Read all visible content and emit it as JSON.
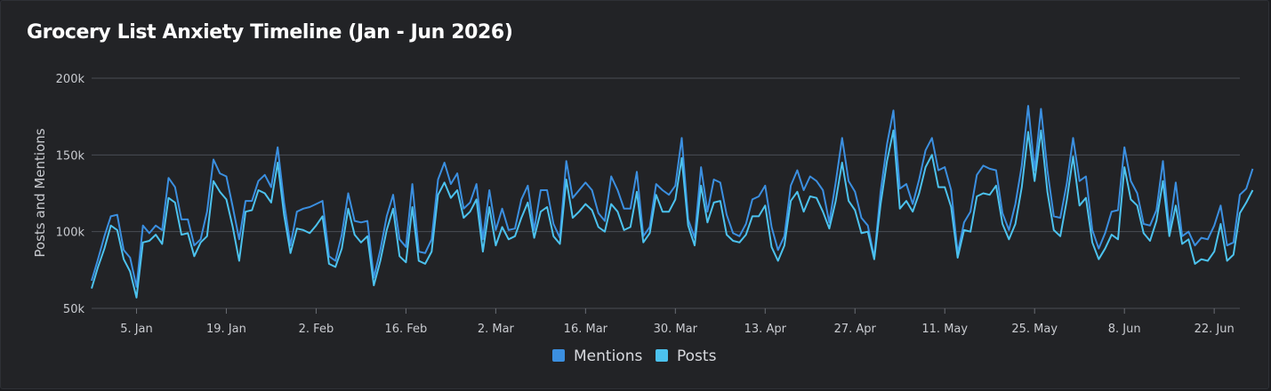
{
  "chart_data": {
    "type": "line",
    "title": "Grocery List Anxiety Timeline (Jan - Jun 2026)",
    "ylabel": "Posts and Mentions",
    "xlabel": "",
    "ylim": [
      50000,
      200000
    ],
    "y_ticks": [
      50000,
      100000,
      150000,
      200000
    ],
    "y_tick_labels": [
      "50k",
      "100k",
      "150k",
      "200k"
    ],
    "x_range": [
      "2025-12-29",
      "2026-06-26"
    ],
    "x_ticks": [
      "2026-01-05",
      "2026-01-19",
      "2026-02-02",
      "2026-02-16",
      "2026-03-02",
      "2026-03-16",
      "2026-03-30",
      "2026-04-13",
      "2026-04-27",
      "2026-05-11",
      "2026-05-25",
      "2026-06-08",
      "2026-06-22"
    ],
    "x_tick_labels": [
      "5. Jan",
      "19. Jan",
      "2. Feb",
      "16. Feb",
      "2. Mar",
      "16. Mar",
      "30. Mar",
      "13. Apr",
      "27. Apr",
      "11. May",
      "25. May",
      "8. Jun",
      "22. Jun"
    ],
    "legend_position": "bottom-center",
    "grid": "horizontal",
    "x_start": "2025-12-29",
    "series": [
      {
        "name": "Mentions",
        "color": "#3b8fe0",
        "values": [
          68000,
          82000,
          97000,
          110000,
          111000,
          88000,
          83000,
          64000,
          104000,
          99000,
          104000,
          101000,
          135000,
          129000,
          108000,
          108000,
          91000,
          95000,
          113000,
          147000,
          138000,
          136000,
          116000,
          95000,
          120000,
          120000,
          133000,
          137000,
          129000,
          155000,
          119000,
          91000,
          113000,
          115000,
          116000,
          118000,
          120000,
          84000,
          81000,
          98000,
          125000,
          107000,
          106000,
          107000,
          70000,
          88000,
          110000,
          124000,
          95000,
          90000,
          131000,
          87000,
          86000,
          95000,
          134000,
          145000,
          131000,
          138000,
          115000,
          119000,
          131000,
          95000,
          127000,
          101000,
          115000,
          101000,
          102000,
          121000,
          130000,
          101000,
          127000,
          127000,
          105000,
          96000,
          146000,
          122000,
          127000,
          132000,
          127000,
          112000,
          107000,
          136000,
          127000,
          115000,
          115000,
          139000,
          97000,
          103000,
          131000,
          127000,
          124000,
          130000,
          161000,
          108000,
          96000,
          142000,
          113000,
          134000,
          132000,
          111000,
          99000,
          97000,
          105000,
          121000,
          123000,
          130000,
          103000,
          88000,
          97000,
          130000,
          140000,
          127000,
          136000,
          133000,
          127000,
          106000,
          132000,
          161000,
          133000,
          126000,
          109000,
          104000,
          83000,
          126000,
          157000,
          179000,
          128000,
          131000,
          118000,
          134000,
          153000,
          161000,
          140000,
          142000,
          127000,
          86000,
          106000,
          113000,
          137000,
          143000,
          141000,
          140000,
          112000,
          101000,
          118000,
          143000,
          182000,
          140000,
          180000,
          140000,
          110000,
          109000,
          131000,
          161000,
          133000,
          136000,
          101000,
          89000,
          99000,
          113000,
          114000,
          155000,
          133000,
          125000,
          105000,
          104000,
          114000,
          146000,
          101000,
          132000,
          97000,
          100000,
          91000,
          96000,
          95000,
          104000,
          117000,
          91000,
          93000,
          124000,
          128000,
          141000
        ]
      },
      {
        "name": "Posts",
        "color": "#4cc2ee",
        "values": [
          63000,
          77000,
          89000,
          104000,
          101000,
          82000,
          74000,
          57000,
          93000,
          94000,
          98000,
          92000,
          122000,
          119000,
          98000,
          99000,
          84000,
          93000,
          97000,
          133000,
          126000,
          121000,
          103000,
          81000,
          113000,
          114000,
          127000,
          125000,
          119000,
          145000,
          111000,
          86000,
          102000,
          101000,
          99000,
          104000,
          110000,
          79000,
          77000,
          89000,
          115000,
          98000,
          93000,
          97000,
          65000,
          81000,
          101000,
          115000,
          84000,
          80000,
          116000,
          81000,
          79000,
          87000,
          124000,
          132000,
          122000,
          127000,
          109000,
          113000,
          121000,
          87000,
          116000,
          91000,
          103000,
          95000,
          97000,
          109000,
          119000,
          96000,
          113000,
          116000,
          97000,
          92000,
          134000,
          109000,
          113000,
          118000,
          114000,
          103000,
          100000,
          118000,
          113000,
          101000,
          103000,
          126000,
          93000,
          99000,
          124000,
          113000,
          113000,
          121000,
          148000,
          104000,
          91000,
          130000,
          106000,
          119000,
          120000,
          98000,
          94000,
          93000,
          98000,
          110000,
          110000,
          117000,
          90000,
          81000,
          91000,
          120000,
          126000,
          113000,
          123000,
          122000,
          113000,
          102000,
          120000,
          145000,
          120000,
          114000,
          99000,
          100000,
          82000,
          118000,
          146000,
          166000,
          115000,
          120000,
          113000,
          125000,
          142000,
          150000,
          129000,
          129000,
          116000,
          83000,
          101000,
          100000,
          123000,
          125000,
          124000,
          130000,
          105000,
          95000,
          105000,
          129000,
          165000,
          133000,
          166000,
          126000,
          101000,
          97000,
          120000,
          149000,
          117000,
          122000,
          93000,
          82000,
          89000,
          98000,
          95000,
          142000,
          121000,
          117000,
          99000,
          94000,
          107000,
          133000,
          97000,
          117000,
          92000,
          95000,
          79000,
          82000,
          81000,
          87000,
          105000,
          81000,
          85000,
          112000,
          119000,
          127000
        ]
      }
    ]
  }
}
